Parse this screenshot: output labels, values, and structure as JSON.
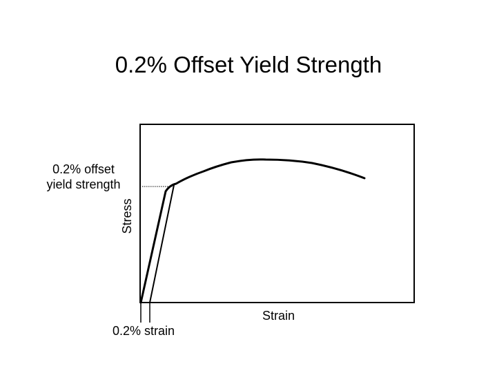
{
  "diagram": {
    "title": "0.2% Offset Yield Strength",
    "ylabel": "Stress",
    "xlabel": "Strain",
    "yield_annotation": [
      "0.2% offset",
      "yield strength"
    ],
    "strain_annotation": "0.2% strain",
    "colors": {
      "line": "#000000",
      "background": "#ffffff"
    }
  }
}
